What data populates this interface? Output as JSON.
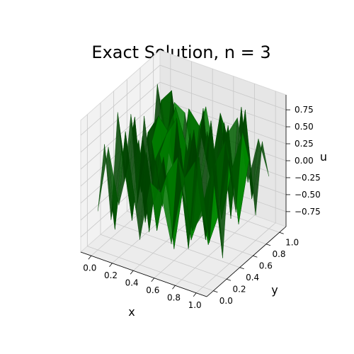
{
  "chart_data": {
    "type": "surface3d",
    "title": "Exact Solution, n = 3",
    "xlabel": "x",
    "ylabel": "y",
    "zlabel": "u",
    "xlim": [
      -0.1,
      1.1
    ],
    "ylim": [
      -0.1,
      1.1
    ],
    "zlim": [
      -0.97,
      0.97
    ],
    "x_ticks": [
      "0.0",
      "0.2",
      "0.4",
      "0.6",
      "0.8",
      "1.0"
    ],
    "y_ticks": [
      "0.0",
      "0.2",
      "0.4",
      "0.6",
      "0.8",
      "1.0"
    ],
    "z_ticks": [
      "0.75",
      "0.50",
      "0.25",
      "0.00",
      "−0.25",
      "−0.50",
      "−0.75"
    ],
    "grid": true,
    "surface_color": "#008000",
    "x": [
      0.0,
      0.1,
      0.2,
      0.3,
      0.4,
      0.5,
      0.6,
      0.7,
      0.8,
      0.9,
      1.0
    ],
    "y": [
      0.0,
      0.1,
      0.2,
      0.3,
      0.4,
      0.5,
      0.6,
      0.7,
      0.8,
      0.9,
      1.0
    ],
    "z": [
      [
        -0.4,
        0.6,
        -0.2,
        0.5,
        -0.6,
        0.3,
        0.2,
        -0.5,
        0.4,
        -0.2,
        0.1
      ],
      [
        0.5,
        -0.7,
        0.8,
        -0.3,
        0.6,
        -0.5,
        0.4,
        0.7,
        -0.6,
        0.8,
        -0.4
      ],
      [
        -0.7,
        0.4,
        -0.6,
        0.7,
        -0.2,
        0.5,
        -0.8,
        0.3,
        0.6,
        -0.5,
        0.7
      ],
      [
        0.8,
        -0.3,
        0.5,
        -0.8,
        0.4,
        -0.3,
        0.6,
        -0.7,
        -0.2,
        0.5,
        -0.8
      ],
      [
        -0.3,
        0.7,
        -0.8,
        0.2,
        0.6,
        0.9,
        -0.4,
        0.5,
        -0.8,
        -0.3,
        0.6
      ],
      [
        0.6,
        -0.5,
        0.3,
        -0.6,
        0.8,
        -0.2,
        0.7,
        -0.5,
        0.3,
        0.7,
        -0.3
      ],
      [
        -0.8,
        0.3,
        0.6,
        0.4,
        -0.7,
        0.5,
        -0.3,
        0.8,
        -0.6,
        0.2,
        0.8
      ],
      [
        0.4,
        -0.8,
        -0.3,
        0.7,
        0.2,
        -0.6,
        0.5,
        -0.2,
        0.7,
        -0.7,
        0.3
      ],
      [
        -0.5,
        0.6,
        0.8,
        -0.4,
        -0.5,
        0.7,
        -0.8,
        0.6,
        -0.3,
        0.9,
        -0.6
      ],
      [
        0.7,
        -0.2,
        -0.7,
        0.5,
        0.3,
        -0.4,
        0.6,
        -0.9,
        0.8,
        -0.5,
        0.4
      ],
      [
        -0.2,
        0.4,
        0.3,
        -0.6,
        0.5,
        -0.3,
        0.2,
        0.5,
        -0.4,
        0.3,
        -0.2
      ]
    ]
  }
}
